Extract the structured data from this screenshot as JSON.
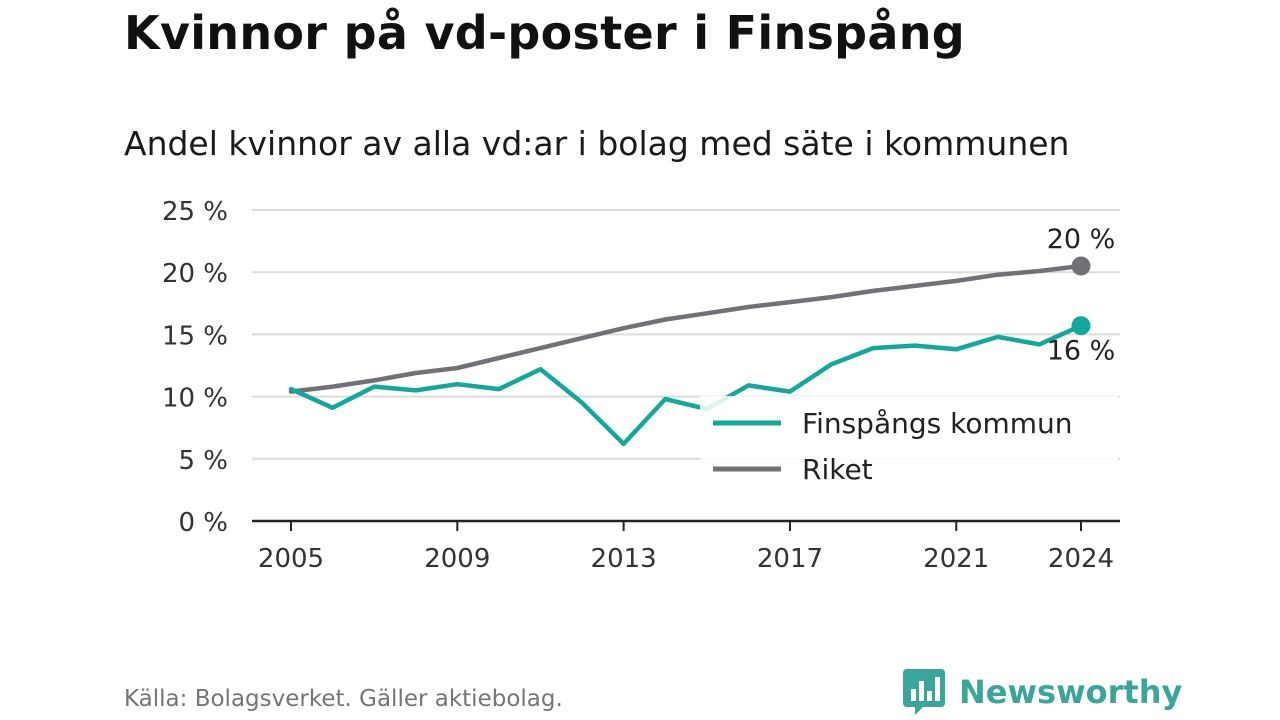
{
  "chart_data": {
    "type": "line",
    "title": "Kvinnor på vd-poster i Finspång",
    "subtitle": "Andel kvinnor av alla vd:ar i bolag med säte i kommunen",
    "x": [
      2005,
      2006,
      2007,
      2008,
      2009,
      2010,
      2011,
      2012,
      2013,
      2014,
      2015,
      2016,
      2017,
      2018,
      2019,
      2020,
      2021,
      2022,
      2023,
      2024
    ],
    "x_ticks": [
      "2005",
      "2009",
      "2013",
      "2017",
      "2021",
      "2024"
    ],
    "y_ticks": [
      "0 %",
      "5 %",
      "10 %",
      "15 %",
      "20 %",
      "25 %"
    ],
    "ylim": [
      0,
      25
    ],
    "grid": true,
    "legend_position": "bottom-right",
    "series": [
      {
        "name": "Finspångs kommun",
        "color": "#12a89a",
        "values": [
          10.6,
          9.1,
          10.8,
          10.5,
          11.0,
          10.6,
          12.2,
          9.5,
          6.2,
          9.8,
          9.0,
          10.9,
          10.4,
          12.6,
          13.9,
          14.1,
          13.8,
          14.8,
          14.2,
          15.7
        ],
        "end_label": "16 %"
      },
      {
        "name": "Riket",
        "color": "#727176",
        "values": [
          10.4,
          10.8,
          11.3,
          11.9,
          12.3,
          13.1,
          13.9,
          14.7,
          15.5,
          16.2,
          16.7,
          17.2,
          17.6,
          18.0,
          18.5,
          18.9,
          19.3,
          19.8,
          20.1,
          20.5
        ],
        "end_label": "20 %"
      }
    ]
  },
  "source": "Källa: Bolagsverket. Gäller aktiebolag.",
  "brand": {
    "name": "Newsworthy",
    "color": "#3aa59b",
    "icon": "bar-chart-speech-bubble-icon"
  }
}
